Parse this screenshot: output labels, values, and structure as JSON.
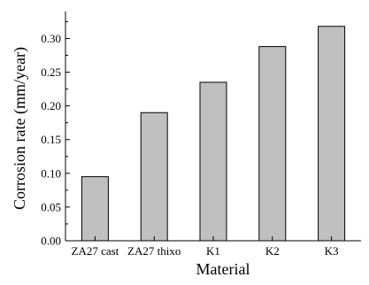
{
  "chart_data": {
    "type": "bar",
    "title": "",
    "xlabel": "Material",
    "ylabel": "Corrosion rate (mm/year)",
    "categories": [
      "ZA27 cast",
      "ZA27 thixo",
      "K1",
      "K2",
      "K3"
    ],
    "values": [
      0.095,
      0.19,
      0.235,
      0.288,
      0.318
    ],
    "ylim": [
      0,
      0.34
    ],
    "yticks": [
      "0.00",
      "0.05",
      "0.10",
      "0.15",
      "0.20",
      "0.25",
      "0.30"
    ],
    "ytick_values": [
      0,
      0.05,
      0.1,
      0.15,
      0.2,
      0.25,
      0.3
    ],
    "grid": false,
    "bar_color": "#c0c0c0"
  }
}
